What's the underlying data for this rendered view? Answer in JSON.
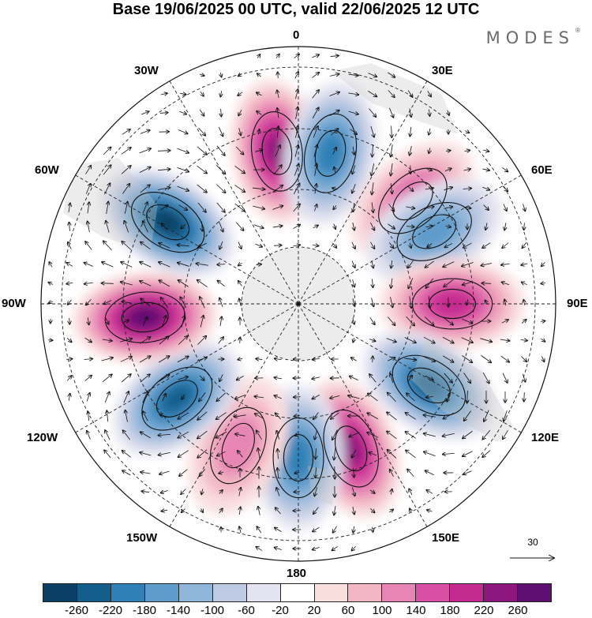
{
  "title": "Base 19/06/2025 00 UTC, valid 22/06/2025 12 UTC",
  "brand": {
    "name": "MODES",
    "mark": "®"
  },
  "longitude_labels": {
    "lon_0": "0",
    "lon_30e": "30E",
    "lon_60e": "60E",
    "lon_90e": "90E",
    "lon_120e": "120E",
    "lon_150e": "150E",
    "lon_180": "180",
    "lon_150w": "150W",
    "lon_120w": "120W",
    "lon_90w": "90W",
    "lon_60w": "60W",
    "lon_30w": "30W"
  },
  "reference_vector": {
    "value": "30"
  },
  "colorbar": {
    "colors": [
      "#0b3f63",
      "#145e8c",
      "#2f80b6",
      "#5f9ccb",
      "#8fb5d9",
      "#bec9e2",
      "#e3e4f0",
      "#ffffff",
      "#f9dede",
      "#f2b7c4",
      "#e786b4",
      "#d94fa3",
      "#c42a8f",
      "#8e177f",
      "#5e1072"
    ],
    "ticks": [
      "-260",
      "-220",
      "-180",
      "-140",
      "-100",
      "-60",
      "-20",
      "20",
      "60",
      "100",
      "140",
      "180",
      "220",
      "260"
    ]
  },
  "anomaly_centers": [
    {
      "sign": "positive",
      "level": 220,
      "bearing_deg": 352
    },
    {
      "sign": "negative",
      "level": -180,
      "bearing_deg": 12
    },
    {
      "sign": "positive",
      "level": 140,
      "bearing_deg": 48
    },
    {
      "sign": "negative",
      "level": -140,
      "bearing_deg": 62
    },
    {
      "sign": "positive",
      "level": 180,
      "bearing_deg": 90
    },
    {
      "sign": "negative",
      "level": -220,
      "bearing_deg": 122
    },
    {
      "sign": "positive",
      "level": 220,
      "bearing_deg": 160
    },
    {
      "sign": "negative",
      "level": -180,
      "bearing_deg": 180
    },
    {
      "sign": "positive",
      "level": 100,
      "bearing_deg": 203
    },
    {
      "sign": "negative",
      "level": -220,
      "bearing_deg": 232
    },
    {
      "sign": "positive",
      "level": 260,
      "bearing_deg": 265
    },
    {
      "sign": "negative",
      "level": -260,
      "bearing_deg": 302
    }
  ]
}
